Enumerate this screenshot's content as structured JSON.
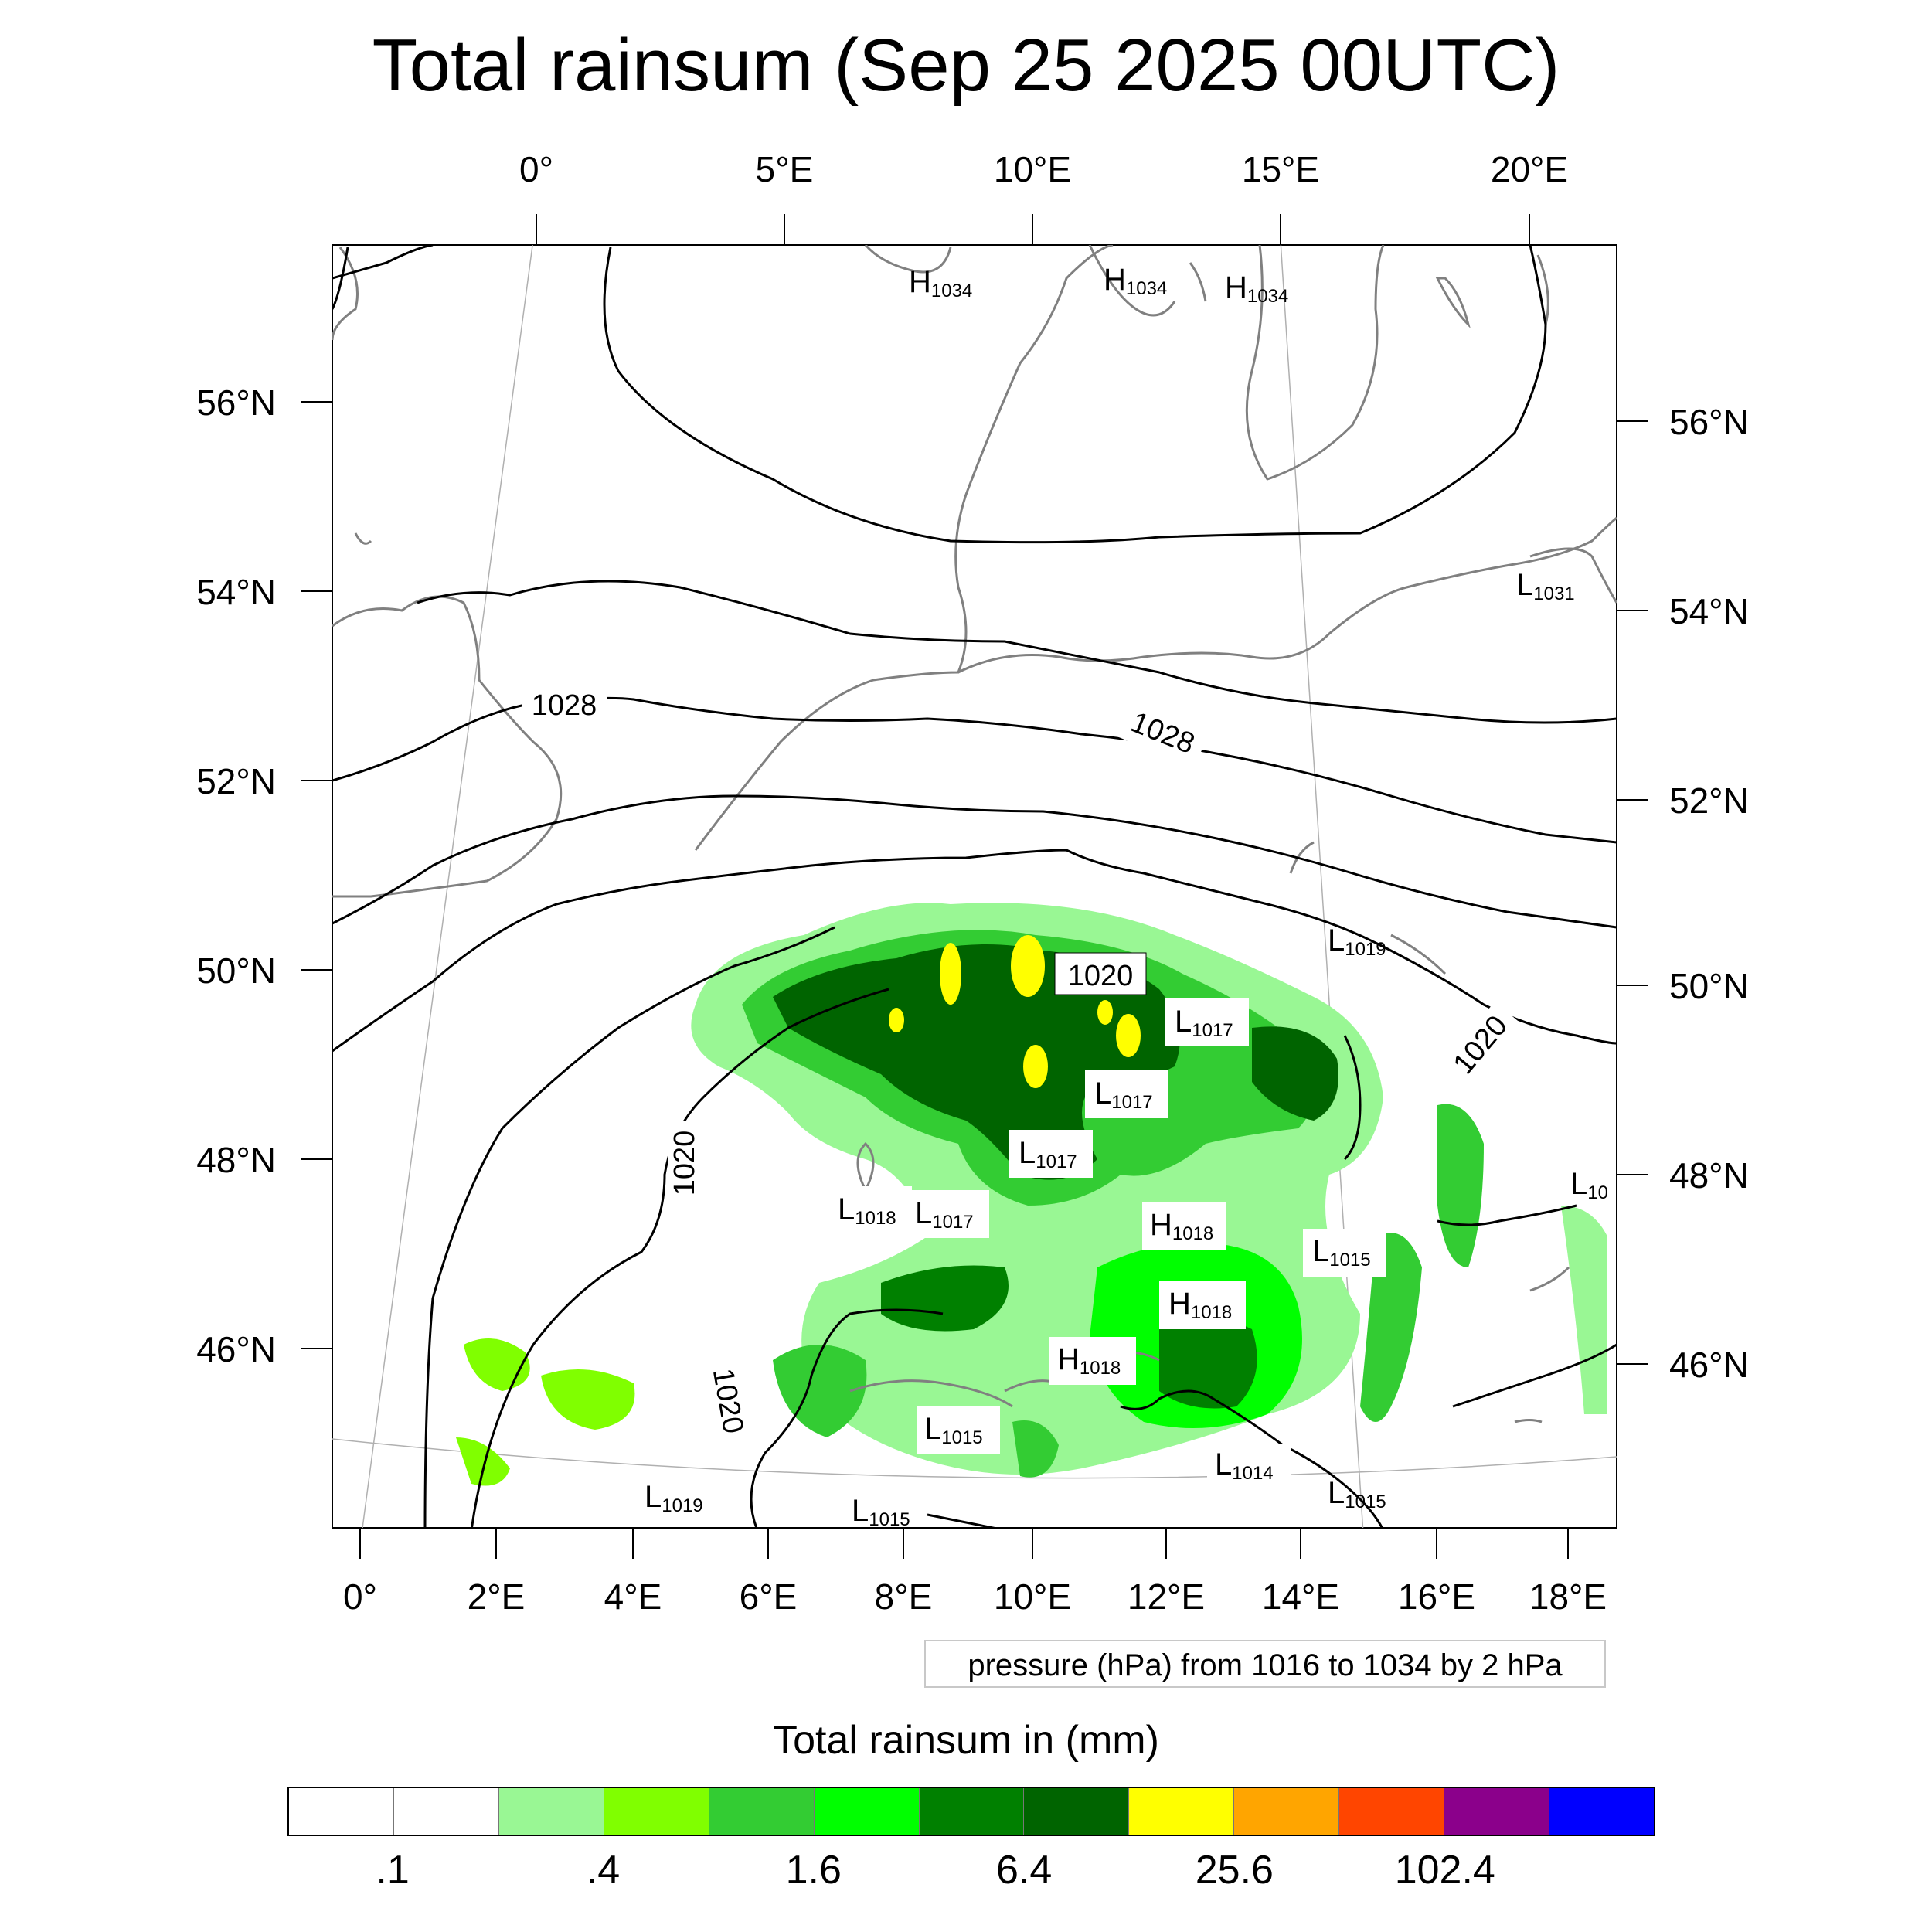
{
  "title": "Total rainsum (Sep 25 2025 00UTC)",
  "top_lon_labels": [
    "0°",
    "5°E",
    "10°E",
    "15°E",
    "20°E"
  ],
  "bottom_lon_labels": [
    "0°",
    "2°E",
    "4°E",
    "6°E",
    "8°E",
    "10°E",
    "12°E",
    "14°E",
    "16°E",
    "18°E"
  ],
  "left_lat_labels": [
    "56°N",
    "54°N",
    "52°N",
    "50°N",
    "48°N",
    "46°N"
  ],
  "right_lat_labels": [
    "56°N",
    "54°N",
    "52°N",
    "50°N",
    "48°N",
    "46°N"
  ],
  "pressure_centers": [
    {
      "type": "H",
      "value": "1034"
    },
    {
      "type": "H",
      "value": "1034"
    },
    {
      "type": "H",
      "value": "1034"
    },
    {
      "type": "L",
      "value": "1031"
    },
    {
      "type": "L",
      "value": "1019"
    },
    {
      "type": "L",
      "value": "1017"
    },
    {
      "type": "L",
      "value": "1017"
    },
    {
      "type": "L",
      "value": "1017"
    },
    {
      "type": "L",
      "value": "1018"
    },
    {
      "type": "L",
      "value": "1017"
    },
    {
      "type": "H",
      "value": "1018"
    },
    {
      "type": "L",
      "value": "1015"
    },
    {
      "type": "H",
      "value": "1018"
    },
    {
      "type": "H",
      "value": "1018"
    },
    {
      "type": "L",
      "value": "1015"
    },
    {
      "type": "L",
      "value": "1014"
    },
    {
      "type": "L",
      "value": "1019"
    },
    {
      "type": "L",
      "value": "1015"
    },
    {
      "type": "L",
      "value": "1015"
    },
    {
      "type": "L",
      "value": "10"
    }
  ],
  "isobar_labels": [
    "1028",
    "1028",
    "1020",
    "1020",
    "1020",
    "1020"
  ],
  "pressure_note": "pressure (hPa) from 1016 to 1034 by 2 hPa",
  "colorbar": {
    "title": "Total rainsum in (mm)",
    "colors": [
      "#ffffff",
      "#ffffff",
      "#99f794",
      "#80ff00",
      "#33cc33",
      "#00ff00",
      "#008000",
      "#006400",
      "#ffff00",
      "#ffa500",
      "#ff4500",
      "#8b008b",
      "#0000ff"
    ],
    "labels": [
      ".1",
      ".4",
      "1.6",
      "6.4",
      "25.6",
      "102.4"
    ]
  }
}
